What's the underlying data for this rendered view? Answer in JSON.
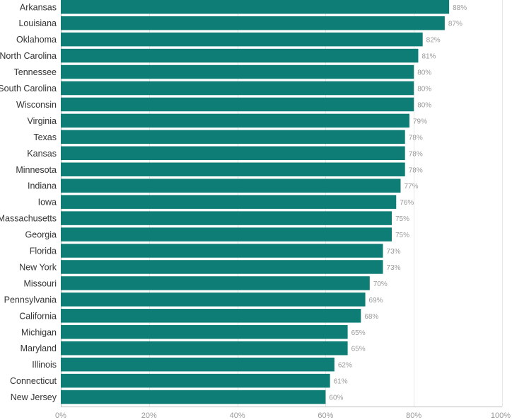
{
  "chart_data": {
    "type": "bar",
    "orientation": "horizontal",
    "categories": [
      "Arkansas",
      "Louisiana",
      "Oklahoma",
      "North Carolina",
      "Tennessee",
      "South Carolina",
      "Wisconsin",
      "Virginia",
      "Texas",
      "Kansas",
      "Minnesota",
      "Indiana",
      "Iowa",
      "Massachusetts",
      "Georgia",
      "Florida",
      "New York",
      "Missouri",
      "Pennsylvania",
      "California",
      "Michigan",
      "Maryland",
      "Illinois",
      "Connecticut",
      "New Jersey"
    ],
    "values": [
      88,
      87,
      82,
      81,
      80,
      80,
      80,
      79,
      78,
      78,
      78,
      77,
      76,
      75,
      75,
      73,
      73,
      70,
      69,
      68,
      65,
      65,
      62,
      61,
      60
    ],
    "value_labels": [
      "88%",
      "87%",
      "82%",
      "81%",
      "80%",
      "80%",
      "80%",
      "79%",
      "78%",
      "78%",
      "78%",
      "77%",
      "76%",
      "75%",
      "75%",
      "73%",
      "73%",
      "70%",
      "69%",
      "68%",
      "65%",
      "65%",
      "62%",
      "61%",
      "60%"
    ],
    "xlim": [
      0,
      100
    ],
    "x_ticks": [
      0,
      20,
      40,
      60,
      80,
      100
    ],
    "x_tick_labels": [
      "0%",
      "20%",
      "40%",
      "60%",
      "80%",
      "100%"
    ],
    "grid": true,
    "bar_color": "#0e7d76",
    "title": "",
    "xlabel": "",
    "ylabel": ""
  }
}
